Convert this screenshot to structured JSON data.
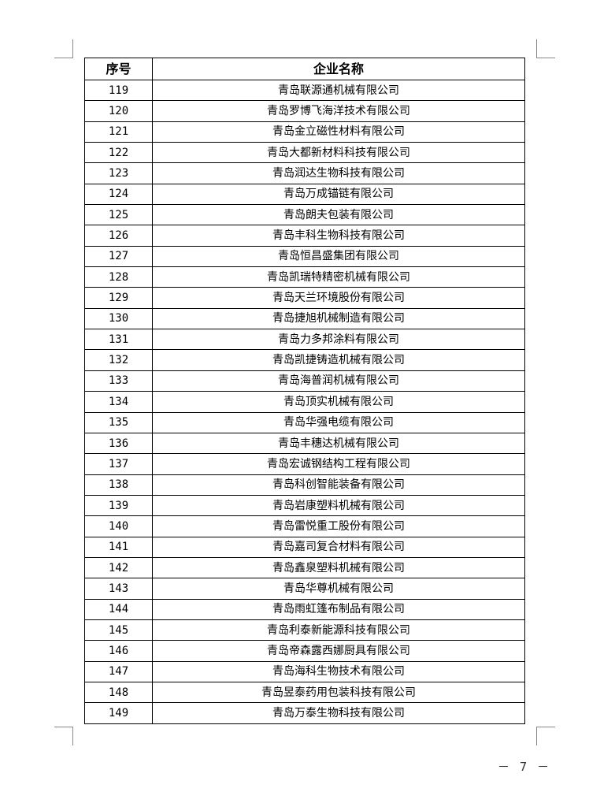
{
  "table": {
    "headers": [
      "序号",
      "企业名称"
    ],
    "rows": [
      [
        "119",
        "青岛联源通机械有限公司"
      ],
      [
        "120",
        "青岛罗博飞海洋技术有限公司"
      ],
      [
        "121",
        "青岛金立磁性材料有限公司"
      ],
      [
        "122",
        "青岛大都新材料科技有限公司"
      ],
      [
        "123",
        "青岛润达生物科技有限公司"
      ],
      [
        "124",
        "青岛万成锚链有限公司"
      ],
      [
        "125",
        "青岛朗夫包装有限公司"
      ],
      [
        "126",
        "青岛丰科生物科技有限公司"
      ],
      [
        "127",
        "青岛恒昌盛集团有限公司"
      ],
      [
        "128",
        "青岛凯瑞特精密机械有限公司"
      ],
      [
        "129",
        "青岛天兰环境股份有限公司"
      ],
      [
        "130",
        "青岛捷旭机械制造有限公司"
      ],
      [
        "131",
        "青岛力多邦涂料有限公司"
      ],
      [
        "132",
        "青岛凯捷铸造机械有限公司"
      ],
      [
        "133",
        "青岛海普润机械有限公司"
      ],
      [
        "134",
        "青岛顶实机械有限公司"
      ],
      [
        "135",
        "青岛华强电缆有限公司"
      ],
      [
        "136",
        "青岛丰穗达机械有限公司"
      ],
      [
        "137",
        "青岛宏诚钢结构工程有限公司"
      ],
      [
        "138",
        "青岛科创智能装备有限公司"
      ],
      [
        "139",
        "青岛岩康塑料机械有限公司"
      ],
      [
        "140",
        "青岛雷悦重工股份有限公司"
      ],
      [
        "141",
        "青岛嘉司复合材料有限公司"
      ],
      [
        "142",
        "青岛鑫泉塑料机械有限公司"
      ],
      [
        "143",
        "青岛华尊机械有限公司"
      ],
      [
        "144",
        "青岛雨虹篷布制品有限公司"
      ],
      [
        "145",
        "青岛利泰新能源科技有限公司"
      ],
      [
        "146",
        "青岛帝森露西娜厨具有限公司"
      ],
      [
        "147",
        "青岛海科生物技术有限公司"
      ],
      [
        "148",
        "青岛昱泰药用包装科技有限公司"
      ],
      [
        "149",
        "青岛万泰生物科技有限公司"
      ]
    ]
  },
  "footer": {
    "page_number": "－ 7 －"
  }
}
